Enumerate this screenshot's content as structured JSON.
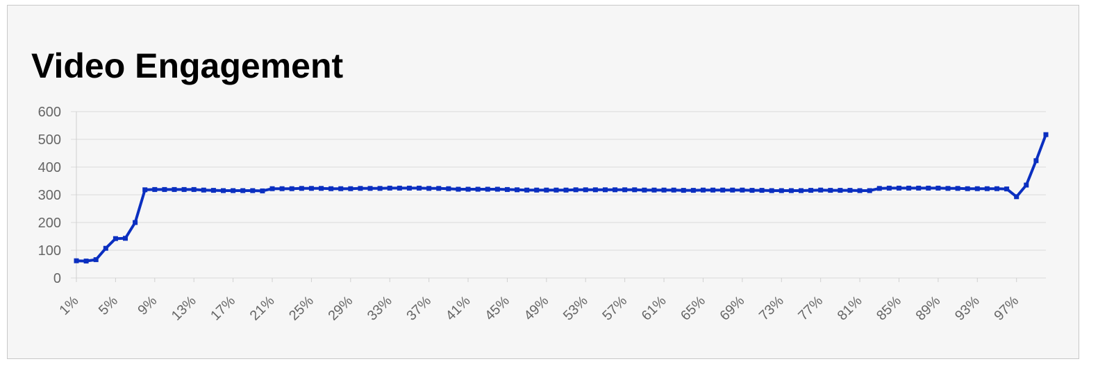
{
  "chart_data": {
    "type": "line",
    "title": "Video Engagement",
    "categories": [
      "1%",
      null,
      null,
      null,
      "5%",
      null,
      null,
      null,
      "9%",
      null,
      null,
      null,
      "13%",
      null,
      null,
      null,
      "17%",
      null,
      null,
      null,
      "21%",
      null,
      null,
      null,
      "25%",
      null,
      null,
      null,
      "29%",
      null,
      null,
      null,
      "33%",
      null,
      null,
      null,
      "37%",
      null,
      null,
      null,
      "41%",
      null,
      null,
      null,
      "45%",
      null,
      null,
      null,
      "49%",
      null,
      null,
      null,
      "53%",
      null,
      null,
      null,
      "57%",
      null,
      null,
      null,
      "61%",
      null,
      null,
      null,
      "65%",
      null,
      null,
      null,
      "69%",
      null,
      null,
      null,
      "73%",
      null,
      null,
      null,
      "77%",
      null,
      null,
      null,
      "81%",
      null,
      null,
      null,
      "85%",
      null,
      null,
      null,
      "89%",
      null,
      null,
      null,
      "93%",
      null,
      null,
      null,
      "97%",
      null,
      null,
      null
    ],
    "values": [
      62,
      61,
      66,
      107,
      142,
      143,
      200,
      318,
      319,
      319,
      319,
      319,
      319,
      317,
      316,
      315,
      315,
      315,
      315,
      314,
      322,
      322,
      322,
      323,
      323,
      323,
      322,
      322,
      322,
      323,
      323,
      323,
      324,
      324,
      324,
      324,
      323,
      323,
      322,
      320,
      320,
      320,
      320,
      320,
      319,
      318,
      317,
      317,
      317,
      317,
      317,
      318,
      318,
      318,
      318,
      318,
      318,
      318,
      317,
      317,
      317,
      317,
      316,
      316,
      317,
      317,
      317,
      317,
      317,
      316,
      316,
      315,
      315,
      315,
      315,
      316,
      317,
      316,
      316,
      316,
      315,
      315,
      323,
      324,
      324,
      324,
      324,
      324,
      324,
      323,
      323,
      322,
      322,
      322,
      322,
      321,
      293,
      335,
      423,
      517
    ],
    "color": "#0b2fc0",
    "ylim": [
      0,
      600
    ],
    "yticks": [
      0,
      100,
      200,
      300,
      400,
      500,
      600
    ],
    "grid": true
  }
}
